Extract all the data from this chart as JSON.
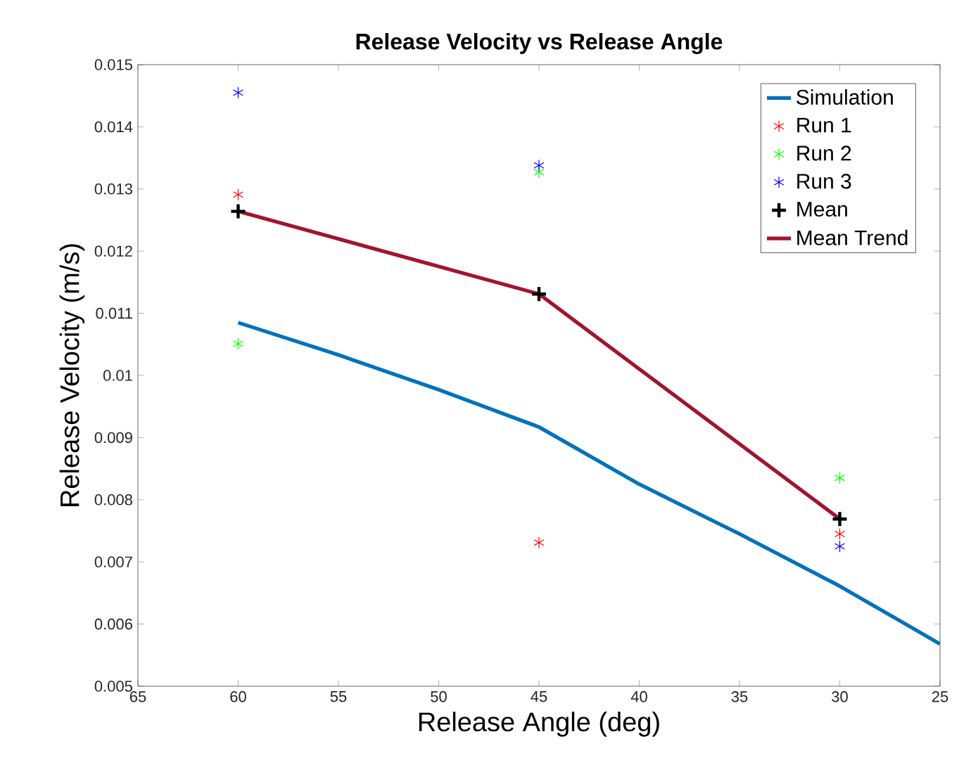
{
  "chart_data": {
    "type": "line",
    "title": "Release Velocity vs Release Angle",
    "xlabel": "Release Angle (deg)",
    "ylabel": "Release Velocity (m/s)",
    "xlim": [
      65,
      25
    ],
    "xticks": [
      65,
      60,
      55,
      50,
      45,
      40,
      35,
      30,
      25
    ],
    "ylim": [
      0.005,
      0.015
    ],
    "yticks": [
      0.005,
      0.006,
      0.007,
      0.008,
      0.009,
      0.01,
      0.011,
      0.012,
      0.013,
      0.014,
      0.015
    ],
    "grid": false,
    "legend": "top right",
    "series": [
      {
        "name": "Simulation",
        "type": "line",
        "color": "#0072bd",
        "x": [
          60,
          55,
          50,
          45,
          40,
          35,
          30,
          25
        ],
        "values": [
          0.01085,
          0.01033,
          0.00977,
          0.00917,
          0.00825,
          0.00745,
          0.00661,
          0.00568
        ]
      },
      {
        "name": "Run 1",
        "type": "scatter",
        "marker": "cross",
        "color": "#ff0000",
        "x": [
          60,
          45,
          30
        ],
        "values": [
          0.01291,
          0.00731,
          0.00745
        ]
      },
      {
        "name": "Run 2",
        "type": "scatter",
        "marker": "cross",
        "color": "#00ff00",
        "x": [
          60,
          45,
          30
        ],
        "values": [
          0.01051,
          0.01327,
          0.00835
        ]
      },
      {
        "name": "Run 3",
        "type": "scatter",
        "marker": "cross",
        "color": "#0000ff",
        "x": [
          60,
          45,
          30
        ],
        "values": [
          0.01455,
          0.01338,
          0.00725
        ]
      },
      {
        "name": "Mean",
        "type": "scatter",
        "color": "#000000",
        "x": [
          60,
          45,
          30
        ],
        "values": [
          0.01264,
          0.01131,
          0.00769
        ]
      },
      {
        "name": "Mean Trend",
        "type": "line",
        "color": "#a2142f",
        "x": [
          60,
          45,
          30
        ],
        "values": [
          0.01264,
          0.01131,
          0.00769
        ]
      }
    ]
  }
}
